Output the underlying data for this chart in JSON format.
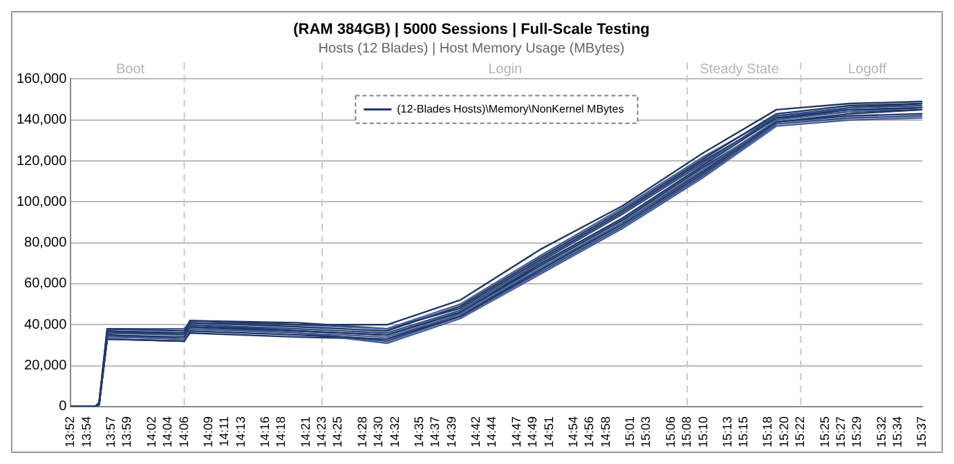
{
  "chart_data": {
    "type": "line",
    "title": "(RAM 384GB) | 5000 Sessions | Full-Scale Testing",
    "subtitle": "Hosts (12 Blades) | Host Memory Usage (MBytes)",
    "x": [
      13.8667,
      13.9167,
      13.925,
      13.9417,
      14.1,
      14.1117,
      14.3333,
      14.5167,
      14.6667,
      14.8333,
      15.0,
      15.1667,
      15.3167,
      15.4667,
      15.6167
    ],
    "series": [
      {
        "name": "(12-Blades Hosts)\\Memory\\NonKernel MBytes",
        "color": "#203864",
        "values": [
          0,
          0,
          1000,
          38000,
          37000,
          42000,
          40000,
          40000,
          52000,
          77000,
          98000,
          124000,
          145000,
          148000,
          149000
        ]
      },
      {
        "color": "#203864",
        "values": [
          0,
          0,
          1000,
          37000,
          36000,
          41000,
          39000,
          37000,
          49000,
          73000,
          96000,
          121000,
          143000,
          147000,
          148000
        ]
      },
      {
        "color": "#2f4b85",
        "values": [
          0,
          0,
          2000,
          36000,
          35000,
          40000,
          38000,
          36000,
          47000,
          71000,
          94000,
          119000,
          142000,
          146000,
          147000
        ]
      },
      {
        "color": "#203864",
        "values": [
          0,
          0,
          1000,
          35000,
          34000,
          39000,
          37000,
          35000,
          46000,
          70000,
          92000,
          118000,
          141000,
          145000,
          146000
        ]
      },
      {
        "color": "#4a5f9a",
        "values": [
          0,
          0,
          1000,
          34000,
          33000,
          38000,
          36000,
          34000,
          45000,
          68000,
          90000,
          116000,
          140000,
          144000,
          146000
        ]
      },
      {
        "color": "#203864",
        "values": [
          0,
          0,
          1000,
          33000,
          32000,
          37000,
          35000,
          33000,
          44000,
          67000,
          89000,
          114000,
          139000,
          143000,
          145000
        ]
      },
      {
        "color": "#4a5f9a",
        "values": [
          0,
          0,
          2000,
          38000,
          38000,
          41000,
          40000,
          38000,
          50000,
          74000,
          97000,
          122000,
          142000,
          145000,
          146000
        ]
      },
      {
        "color": "#203864",
        "values": [
          0,
          0,
          1000,
          36000,
          36000,
          40000,
          37000,
          35000,
          46000,
          69000,
          91000,
          117000,
          139000,
          142000,
          143000
        ]
      },
      {
        "color": "#2f4b85",
        "values": [
          0,
          0,
          1000,
          34000,
          34000,
          39000,
          36000,
          32000,
          44000,
          66000,
          88000,
          113000,
          138000,
          141000,
          142000
        ]
      },
      {
        "color": "#203864",
        "values": [
          0,
          0,
          1000,
          35000,
          33000,
          42000,
          41000,
          38000,
          48000,
          72000,
          95000,
          120000,
          141000,
          144000,
          145000
        ]
      },
      {
        "color": "#4a5f9a",
        "values": [
          0,
          0,
          1000,
          37000,
          35000,
          38000,
          36000,
          31000,
          43000,
          65000,
          87000,
          112000,
          137000,
          140000,
          141000
        ]
      },
      {
        "color": "#203864",
        "values": [
          0,
          0,
          1000,
          33000,
          32000,
          36000,
          34000,
          33000,
          45000,
          67000,
          90000,
          115000,
          140000,
          146000,
          148000
        ]
      }
    ],
    "xlim": [
      13.8667,
      15.6167
    ],
    "xticks": [
      {
        "value": 13.8667,
        "label": "13:52"
      },
      {
        "value": 13.9,
        "label": "13:54"
      },
      {
        "value": 13.95,
        "label": "13:57"
      },
      {
        "value": 13.9833,
        "label": "13:59"
      },
      {
        "value": 14.0333,
        "label": "14:02"
      },
      {
        "value": 14.0667,
        "label": "14:04"
      },
      {
        "value": 14.1,
        "label": "14:06"
      },
      {
        "value": 14.15,
        "label": "14:09"
      },
      {
        "value": 14.1833,
        "label": "14:11"
      },
      {
        "value": 14.2167,
        "label": "14:13"
      },
      {
        "value": 14.2667,
        "label": "14:16"
      },
      {
        "value": 14.3,
        "label": "14:18"
      },
      {
        "value": 14.35,
        "label": "14:21"
      },
      {
        "value": 14.3833,
        "label": "14:23"
      },
      {
        "value": 14.4167,
        "label": "14:25"
      },
      {
        "value": 14.4667,
        "label": "14:28"
      },
      {
        "value": 14.5,
        "label": "14:30"
      },
      {
        "value": 14.5333,
        "label": "14:32"
      },
      {
        "value": 14.5833,
        "label": "14:35"
      },
      {
        "value": 14.6167,
        "label": "14:37"
      },
      {
        "value": 14.65,
        "label": "14:39"
      },
      {
        "value": 14.7,
        "label": "14:42"
      },
      {
        "value": 14.7333,
        "label": "14:44"
      },
      {
        "value": 14.7833,
        "label": "14:47"
      },
      {
        "value": 14.8167,
        "label": "14:49"
      },
      {
        "value": 14.85,
        "label": "14:51"
      },
      {
        "value": 14.9,
        "label": "14:54"
      },
      {
        "value": 14.9333,
        "label": "14:56"
      },
      {
        "value": 14.9667,
        "label": "14:58"
      },
      {
        "value": 15.0167,
        "label": "15:01"
      },
      {
        "value": 15.05,
        "label": "15:03"
      },
      {
        "value": 15.1,
        "label": "15:06"
      },
      {
        "value": 15.1333,
        "label": "15:08"
      },
      {
        "value": 15.1667,
        "label": "15:10"
      },
      {
        "value": 15.2167,
        "label": "15:13"
      },
      {
        "value": 15.25,
        "label": "15:15"
      },
      {
        "value": 15.3,
        "label": "15:18"
      },
      {
        "value": 15.3333,
        "label": "15:20"
      },
      {
        "value": 15.3667,
        "label": "15:22"
      },
      {
        "value": 15.4167,
        "label": "15:25"
      },
      {
        "value": 15.45,
        "label": "15:27"
      },
      {
        "value": 15.4833,
        "label": "15:29"
      },
      {
        "value": 15.5333,
        "label": "15:32"
      },
      {
        "value": 15.5667,
        "label": "15:34"
      },
      {
        "value": 15.6167,
        "label": "15:37"
      }
    ],
    "ylim": [
      0,
      160000
    ],
    "yticks": [
      {
        "value": 0,
        "label": "0"
      },
      {
        "value": 20000,
        "label": "20,000"
      },
      {
        "value": 40000,
        "label": "40,000"
      },
      {
        "value": 60000,
        "label": "60,000"
      },
      {
        "value": 80000,
        "label": "80,000"
      },
      {
        "value": 100000,
        "label": "100,000"
      },
      {
        "value": 120000,
        "label": "120,000"
      },
      {
        "value": 140000,
        "label": "140,000"
      },
      {
        "value": 160000,
        "label": "160,000"
      }
    ],
    "ref_lines": [
      {
        "axis": "x",
        "value": 14.1,
        "color": "#c8c8c8",
        "line_style": "dashed"
      },
      {
        "axis": "x",
        "value": 14.3833,
        "color": "#c8c8c8",
        "line_style": "dashed"
      },
      {
        "axis": "x",
        "value": 15.1333,
        "color": "#c8c8c8",
        "line_style": "dashed"
      },
      {
        "axis": "x",
        "value": 15.3667,
        "color": "#c8c8c8",
        "line_style": "dashed"
      }
    ],
    "annotations": [
      "Boot",
      "Login",
      "Steady State",
      "Logoff"
    ],
    "grid": "y",
    "legend": "top",
    "marker": "none",
    "line_style": "solid"
  }
}
